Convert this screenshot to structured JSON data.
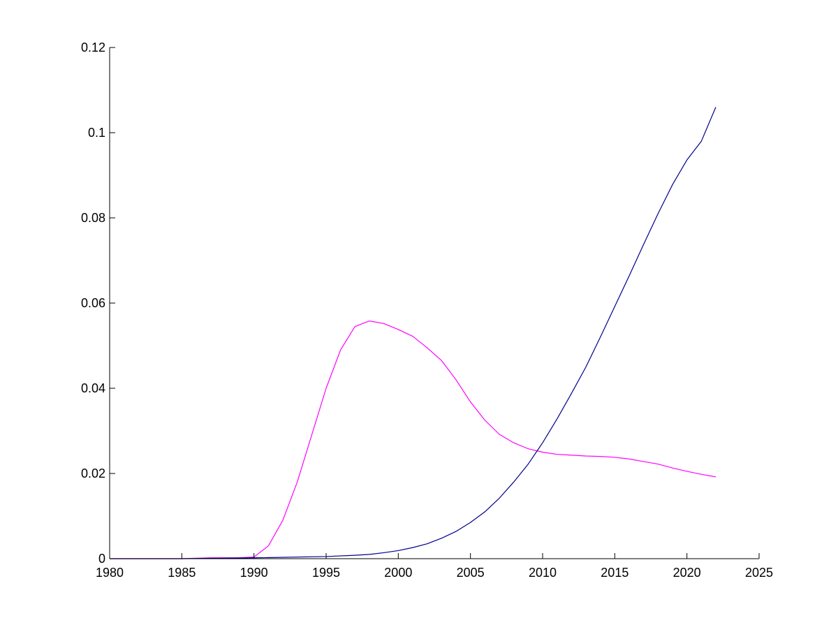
{
  "chart_data": {
    "type": "line",
    "title": "",
    "xlabel": "",
    "ylabel": "",
    "xlim": [
      1980,
      2025
    ],
    "ylim": [
      0,
      0.12
    ],
    "x_ticks": [
      1980,
      1985,
      1990,
      1995,
      2000,
      2005,
      2010,
      2015,
      2020,
      2025
    ],
    "y_ticks": [
      0,
      0.02,
      0.04,
      0.06,
      0.08,
      0.1,
      0.12
    ],
    "x_tick_labels": [
      "1980",
      "1985",
      "1990",
      "1995",
      "2000",
      "2005",
      "2010",
      "2015",
      "2020",
      "2025"
    ],
    "y_tick_labels": [
      "0",
      "0.02",
      "0.04",
      "0.06",
      "0.08",
      "0.1",
      "0.12"
    ],
    "grid": false,
    "legend": false,
    "series": [
      {
        "color": "#ff00ff",
        "points": [
          [
            1980,
            0
          ],
          [
            1985,
            0
          ],
          [
            1987,
            0.0002
          ],
          [
            1989,
            0.0002
          ],
          [
            1990,
            0.0004
          ],
          [
            1991,
            0.003
          ],
          [
            1992,
            0.009
          ],
          [
            1993,
            0.018
          ],
          [
            1994,
            0.029
          ],
          [
            1995,
            0.04
          ],
          [
            1996,
            0.049
          ],
          [
            1997,
            0.0545
          ],
          [
            1998,
            0.0558
          ],
          [
            1999,
            0.0552
          ],
          [
            2000,
            0.0538
          ],
          [
            2001,
            0.0522
          ],
          [
            2002,
            0.0495
          ],
          [
            2003,
            0.0465
          ],
          [
            2004,
            0.042
          ],
          [
            2005,
            0.0368
          ],
          [
            2006,
            0.0325
          ],
          [
            2007,
            0.0292
          ],
          [
            2008,
            0.0272
          ],
          [
            2009,
            0.0258
          ],
          [
            2010,
            0.025
          ],
          [
            2011,
            0.0245
          ],
          [
            2012,
            0.0243
          ],
          [
            2013,
            0.0241
          ],
          [
            2014,
            0.024
          ],
          [
            2015,
            0.0238
          ],
          [
            2016,
            0.0234
          ],
          [
            2017,
            0.0228
          ],
          [
            2018,
            0.0222
          ],
          [
            2019,
            0.0213
          ],
          [
            2020,
            0.0205
          ],
          [
            2021,
            0.0198
          ],
          [
            2022,
            0.0192
          ]
        ]
      },
      {
        "color": "#00008b",
        "points": [
          [
            1980,
            0
          ],
          [
            1985,
            0
          ],
          [
            1990,
            0.0002
          ],
          [
            1995,
            0.0005
          ],
          [
            1997,
            0.0008
          ],
          [
            1998,
            0.001
          ],
          [
            1999,
            0.0014
          ],
          [
            2000,
            0.0019
          ],
          [
            2001,
            0.0026
          ],
          [
            2002,
            0.0035
          ],
          [
            2003,
            0.0048
          ],
          [
            2004,
            0.0064
          ],
          [
            2005,
            0.0085
          ],
          [
            2006,
            0.011
          ],
          [
            2007,
            0.0142
          ],
          [
            2008,
            0.018
          ],
          [
            2009,
            0.0222
          ],
          [
            2010,
            0.0272
          ],
          [
            2011,
            0.0328
          ],
          [
            2012,
            0.0388
          ],
          [
            2013,
            0.045
          ],
          [
            2014,
            0.052
          ],
          [
            2015,
            0.0592
          ],
          [
            2016,
            0.0664
          ],
          [
            2017,
            0.0738
          ],
          [
            2018,
            0.081
          ],
          [
            2019,
            0.0878
          ],
          [
            2020,
            0.0936
          ],
          [
            2021,
            0.098
          ],
          [
            2022,
            0.106
          ]
        ]
      }
    ]
  }
}
